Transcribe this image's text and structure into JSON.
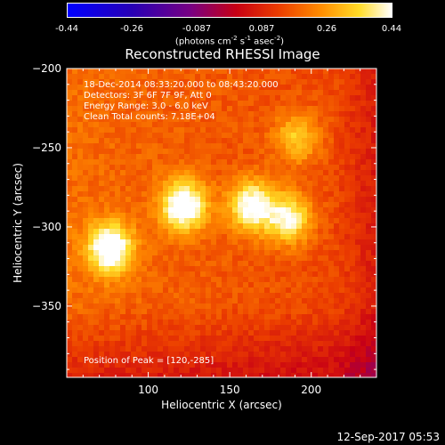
{
  "colorbar": {
    "ticks": [
      "-0.44",
      "-0.26",
      "-0.087",
      "0.087",
      "0.26",
      "0.44"
    ],
    "unit_html": "(photons cm<sup>-2</sup> s<sup>-1</sup> asec<sup>-2</sup>)"
  },
  "chart_data": {
    "type": "heatmap",
    "title": "Reconstructed RHESSI Image",
    "xlabel": "Heliocentric X (arcsec)",
    "ylabel": "Heliocentric Y (arcsec)",
    "xlim": [
      50,
      240
    ],
    "ylim": [
      -395,
      -200
    ],
    "xticks": [
      100,
      150,
      200
    ],
    "yticks": [
      -200,
      -250,
      -300,
      -350
    ],
    "color_range": [
      -0.44,
      0.44
    ],
    "colormap": "rhessi-fire",
    "sources": [
      {
        "x": 75,
        "y": -312,
        "peak": 0.44
      },
      {
        "x": 120,
        "y": -285,
        "peak": 0.44
      },
      {
        "x": 162,
        "y": -285,
        "peak": 0.4
      },
      {
        "x": 185,
        "y": -293,
        "peak": 0.36
      },
      {
        "x": 190,
        "y": -242,
        "peak": 0.28
      }
    ],
    "annotations": [
      "18-Dec-2014 08:33:20.000 to 08:43:20.000",
      "Detectors: 3F 6F 7F 9F, Att 0",
      "Energy Range: 3.0 - 6.0 keV",
      "Clean     Total counts: 7.18E+04"
    ],
    "peak_label": "Position of Peak = [120,-285]"
  },
  "footer": {
    "timestamp": "12-Sep-2017 05:53"
  }
}
